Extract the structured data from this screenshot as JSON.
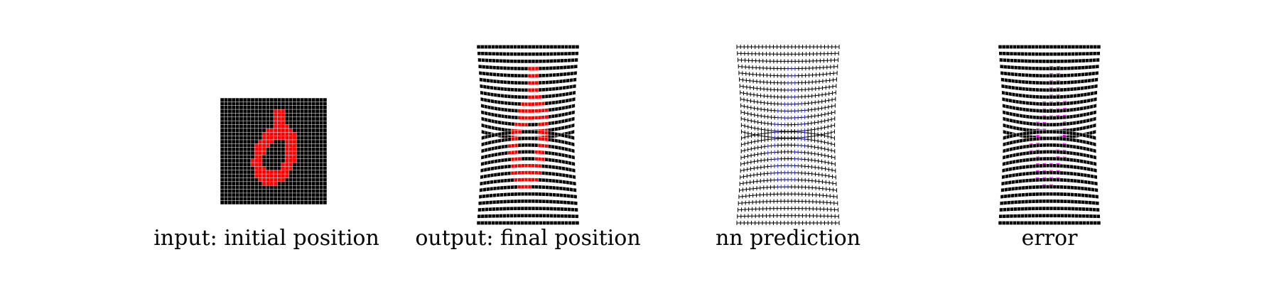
{
  "panels": [
    {
      "id": "input",
      "caption": "input: initial position",
      "style": "grid",
      "highlight_color": "#ff0000"
    },
    {
      "id": "output",
      "caption": "output: final position",
      "style": "bricks",
      "highlight_color": "#ff0000"
    },
    {
      "id": "prediction",
      "caption": "nn prediction",
      "style": "crosses",
      "highlight_color": "#2a2aff"
    },
    {
      "id": "error",
      "caption": "error",
      "style": "error",
      "highlight_color": "#ff00ff"
    }
  ],
  "colors": {
    "mesh": "#000000",
    "grid_line": "#ffffff",
    "background": "#ffffff"
  }
}
